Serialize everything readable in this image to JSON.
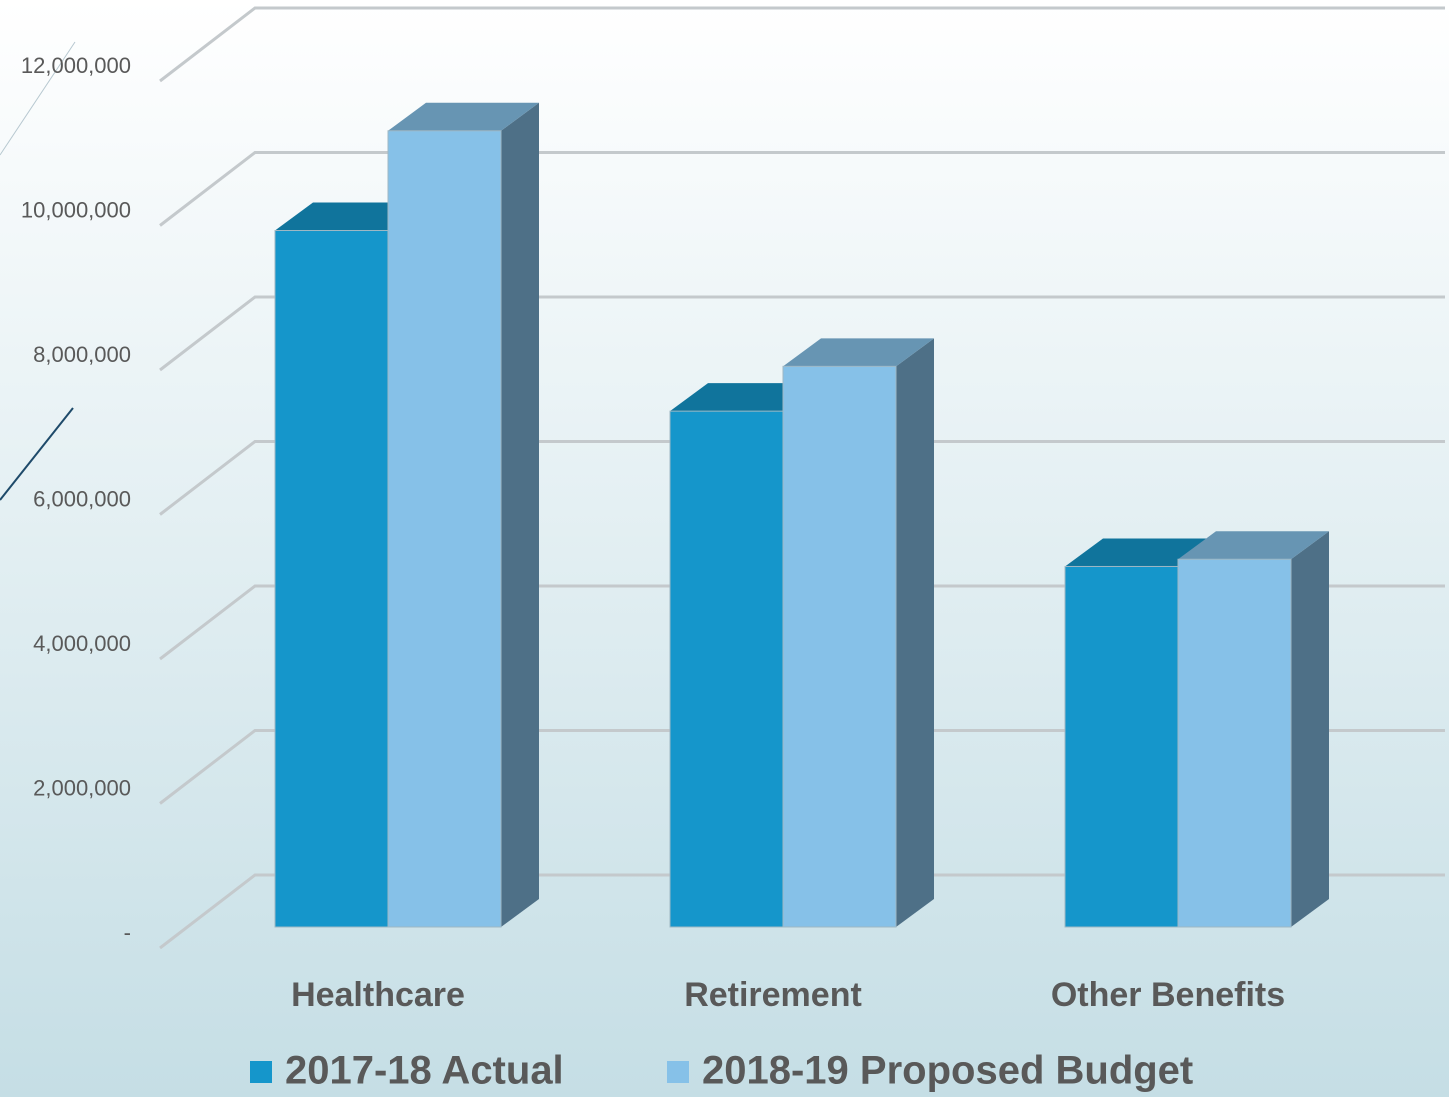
{
  "chart_data": {
    "type": "bar3d",
    "categories": [
      "Healthcare",
      "Retirement",
      "Other Benefits"
    ],
    "series": [
      {
        "name": "2017-18 Actual",
        "color": "#1596cb",
        "values": [
          9640000,
          7140000,
          4990000
        ]
      },
      {
        "name": "2018-19 Proposed Budget",
        "color": "#86c1e8",
        "values": [
          11020000,
          7760000,
          5090000
        ]
      }
    ],
    "ylim": [
      0,
      12000000
    ],
    "yticks": [
      {
        "value": 0,
        "label": "-"
      },
      {
        "value": 2000000,
        "label": "2,000,000"
      },
      {
        "value": 4000000,
        "label": "4,000,000"
      },
      {
        "value": 6000000,
        "label": "6,000,000"
      },
      {
        "value": 8000000,
        "label": "8,000,000"
      },
      {
        "value": 10000000,
        "label": "10,000,000"
      },
      {
        "value": 12000000,
        "label": "12,000,000"
      }
    ],
    "grid": true
  }
}
